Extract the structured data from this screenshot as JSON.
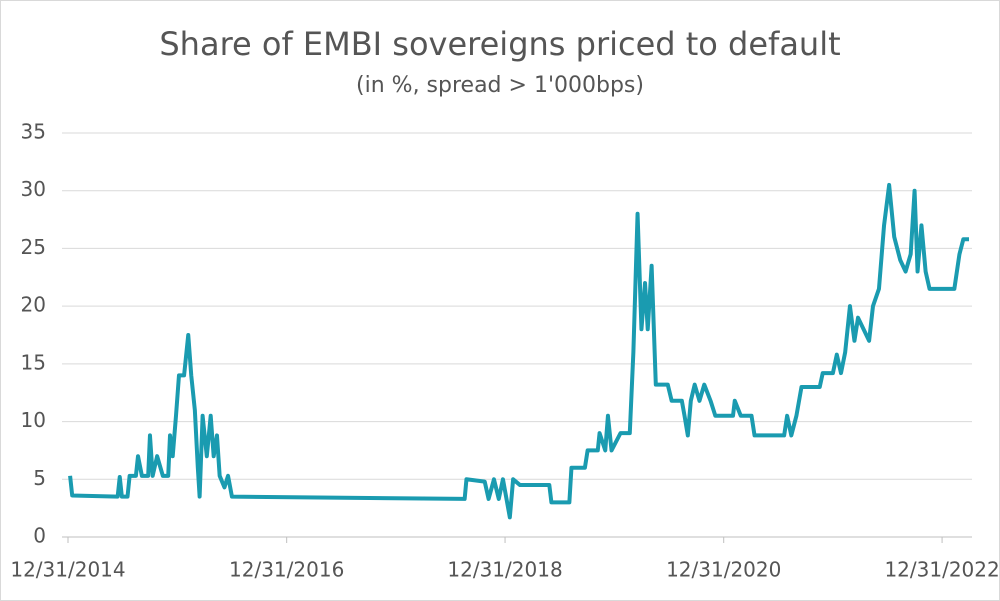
{
  "chart_data": {
    "type": "line",
    "title": "Share of EMBI sovereigns priced to default",
    "subtitle": "(in %, spread > 1'000bps)",
    "x": [
      "2015-01-07",
      "2015-01-14",
      "2015-06-15",
      "2015-06-22",
      "2015-06-29",
      "2015-07-18",
      "2015-07-25",
      "2015-08-15",
      "2015-08-22",
      "2015-09-04",
      "2015-09-25",
      "2015-10-01",
      "2015-10-10",
      "2015-10-25",
      "2015-11-13",
      "2015-12-01",
      "2015-12-07",
      "2015-12-16",
      "2015-12-27",
      "2016-01-06",
      "2016-01-23",
      "2016-02-06",
      "2016-02-16",
      "2016-02-28",
      "2016-03-09",
      "2016-03-15",
      "2016-03-25",
      "2016-04-08",
      "2016-04-21",
      "2016-05-01",
      "2016-05-12",
      "2016-05-21",
      "2016-06-06",
      "2016-06-18",
      "2016-07-01",
      "2018-08-18",
      "2018-08-24",
      "2018-10-24",
      "2018-11-06",
      "2018-11-24",
      "2018-12-10",
      "2018-12-24",
      "2019-01-16",
      "2019-01-27",
      "2019-02-19",
      "2019-05-28",
      "2019-06-04",
      "2019-08-03",
      "2019-08-10",
      "2019-09-24",
      "2019-10-03",
      "2019-11-06",
      "2019-11-12",
      "2019-12-01",
      "2019-12-10",
      "2019-12-22",
      "2020-01-21",
      "2020-02-21",
      "2020-03-04",
      "2020-03-18",
      "2020-03-31",
      "2020-04-12",
      "2020-04-21",
      "2020-05-04",
      "2020-05-18",
      "2020-06-27",
      "2020-07-10",
      "2020-08-13",
      "2020-08-22",
      "2020-09-02",
      "2020-09-12",
      "2020-09-25",
      "2020-10-11",
      "2020-10-27",
      "2020-11-17",
      "2020-12-03",
      "2021-01-31",
      "2021-02-06",
      "2021-02-26",
      "2021-04-03",
      "2021-04-13",
      "2021-07-21",
      "2021-07-31",
      "2021-08-14",
      "2021-08-31",
      "2021-09-17",
      "2021-11-17",
      "2021-11-27",
      "2021-12-31",
      "2022-01-13",
      "2022-01-27",
      "2022-02-10",
      "2022-02-26",
      "2022-03-13",
      "2022-03-25",
      "2022-05-01",
      "2022-05-14",
      "2022-06-03",
      "2022-06-20",
      "2022-07-07",
      "2022-07-24",
      "2022-08-13",
      "2022-08-31",
      "2022-09-17",
      "2022-09-30",
      "2022-10-10",
      "2022-10-23",
      "2022-11-06",
      "2022-11-19",
      "2023-02-10",
      "2023-02-27",
      "2023-03-12",
      "2023-03-31"
    ],
    "series": [
      {
        "color": "#1a9bb0",
        "values": [
          5.3,
          3.6,
          3.5,
          5.2,
          3.5,
          3.5,
          5.3,
          5.3,
          7,
          5.3,
          5.3,
          8.8,
          5.3,
          7,
          5.3,
          5.3,
          8.8,
          7,
          10.5,
          14,
          14,
          17.5,
          14,
          11,
          6,
          3.5,
          10.5,
          7,
          10.5,
          7,
          8.8,
          5.3,
          4.3,
          5.3,
          3.5,
          3.3,
          5,
          4.8,
          3.3,
          5,
          3.3,
          5,
          1.7,
          5,
          4.5,
          4.5,
          3,
          3,
          6,
          6,
          7.5,
          7.5,
          9,
          7.5,
          10.5,
          7.5,
          9,
          9,
          16,
          28,
          18,
          22,
          18,
          23.5,
          13.2,
          13.2,
          11.8,
          11.8,
          10.5,
          8.8,
          11.8,
          13.2,
          11.8,
          13.2,
          11.8,
          10.5,
          10.5,
          11.8,
          10.5,
          10.5,
          8.8,
          8.8,
          10.5,
          8.8,
          10.5,
          13,
          13,
          14.2,
          14.2,
          15.8,
          14.2,
          16,
          20,
          17,
          19,
          17,
          20,
          21.5,
          27,
          30.5,
          26,
          24,
          23,
          24.5,
          30,
          23,
          27,
          23,
          21.5,
          21.5,
          24.5,
          25.8,
          25.8
        ]
      }
    ],
    "xlim": [
      "2014-12-31",
      "2023-04-10"
    ],
    "xticks": [
      {
        "value": "2014-12-31",
        "label": "12/31/2014"
      },
      {
        "value": "2016-12-31",
        "label": "12/31/2016"
      },
      {
        "value": "2018-12-31",
        "label": "12/31/2018"
      },
      {
        "value": "2020-12-31",
        "label": "12/31/2020"
      },
      {
        "value": "2022-12-31",
        "label": "12/31/2022"
      }
    ],
    "ylim": [
      0,
      35
    ],
    "yticks": [
      0,
      5,
      10,
      15,
      20,
      25,
      30,
      35
    ],
    "grid": true
  }
}
